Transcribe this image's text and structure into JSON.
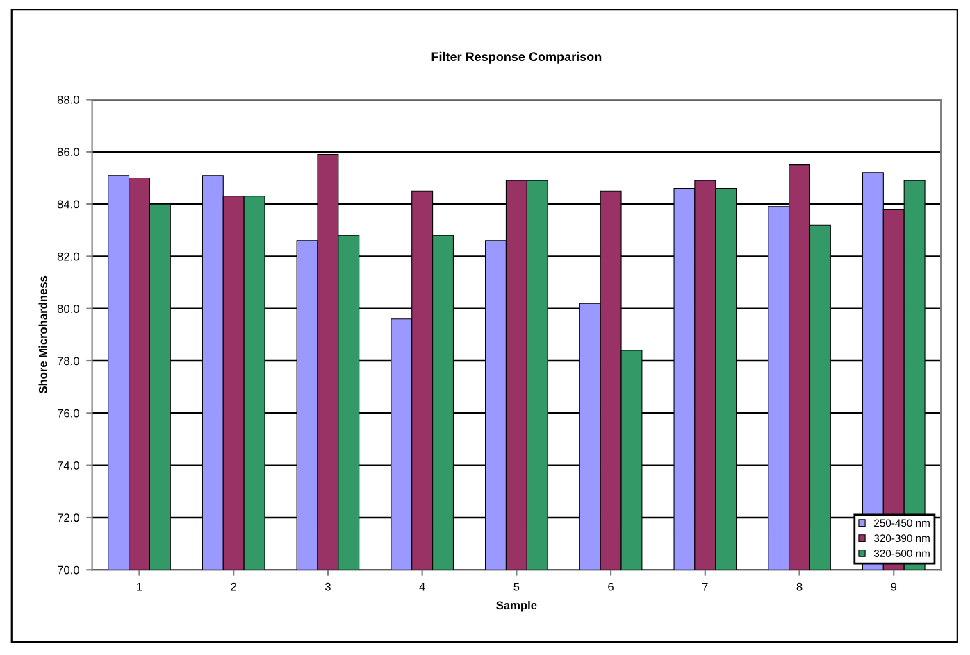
{
  "chart_data": {
    "type": "bar",
    "title": "Filter Response Comparison",
    "xlabel": "Sample",
    "ylabel": "Shore Microhardness",
    "categories": [
      "1",
      "2",
      "3",
      "4",
      "5",
      "6",
      "7",
      "8",
      "9"
    ],
    "series": [
      {
        "name": "250-450 nm",
        "color": "#9999ff",
        "values": [
          85.1,
          85.1,
          82.6,
          79.6,
          82.6,
          80.2,
          84.6,
          83.9,
          85.2
        ]
      },
      {
        "name": "320-390 nm",
        "color": "#993366",
        "values": [
          85.0,
          84.3,
          85.9,
          84.5,
          84.9,
          84.5,
          84.9,
          85.5,
          83.8
        ]
      },
      {
        "name": "320-500 nm",
        "color": "#339966",
        "values": [
          84.0,
          84.3,
          82.8,
          82.8,
          84.9,
          78.4,
          84.6,
          83.2,
          84.9
        ]
      }
    ],
    "ylim": [
      70,
      88
    ],
    "yticks": [
      {
        "value": 70,
        "label": "70.0"
      },
      {
        "value": 72,
        "label": "72.0"
      },
      {
        "value": 74,
        "label": "74.0"
      },
      {
        "value": 76,
        "label": "76.0"
      },
      {
        "value": 78,
        "label": "78.0"
      },
      {
        "value": 80,
        "label": "80.0"
      },
      {
        "value": 82,
        "label": "82.0"
      },
      {
        "value": 84,
        "label": "84.0"
      },
      {
        "value": 86,
        "label": "86.0"
      },
      {
        "value": 88,
        "label": "88.0"
      }
    ],
    "grid": "y",
    "legend": "bottom right"
  }
}
